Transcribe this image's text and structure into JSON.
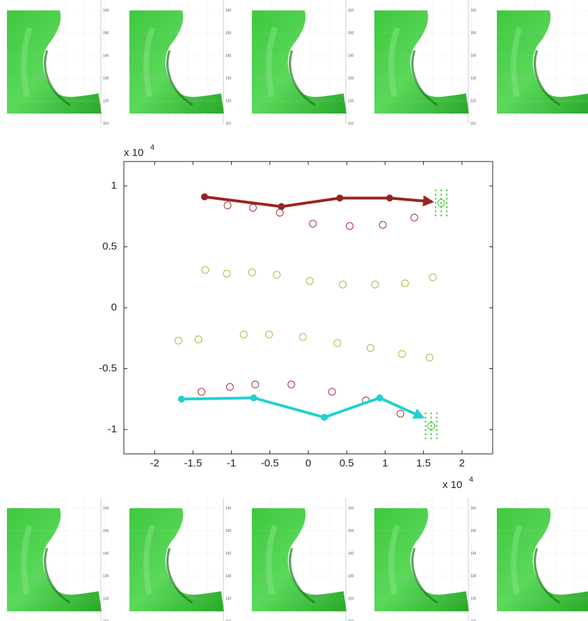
{
  "chart_data": {
    "type": "scatter",
    "xlim": [
      -2.4,
      2.4
    ],
    "ylim": [
      -1.2,
      1.2
    ],
    "xticks": [
      -2,
      -1.5,
      -1,
      -0.5,
      0,
      0.5,
      1,
      1.5,
      2
    ],
    "yticks": [
      -1,
      -0.5,
      0,
      0.5,
      1
    ],
    "x_exponent": {
      "base": "x 10",
      "power": "4"
    },
    "y_exponent": {
      "base": "x 10",
      "power": "4"
    },
    "series": [
      {
        "color": "#a0303a",
        "marker": "open-circle",
        "x": [
          -1.05,
          -0.72,
          -0.37,
          0.06,
          0.54,
          0.97,
          1.38
        ],
        "values": [
          0.84,
          0.82,
          0.78,
          0.69,
          0.67,
          0.68,
          0.74
        ]
      },
      {
        "color": "#b8b040",
        "marker": "open-circle",
        "x": [
          -1.34,
          -1.06,
          -0.73,
          -0.41,
          0.02,
          0.45,
          0.87,
          1.26,
          1.62
        ],
        "values": [
          0.31,
          0.28,
          0.29,
          0.27,
          0.22,
          0.19,
          0.19,
          0.2,
          0.25
        ]
      },
      {
        "color": "#b8b040",
        "marker": "open-circle",
        "x": [
          -1.69,
          -1.43,
          -0.84,
          -0.51,
          -0.07,
          0.38,
          0.81,
          1.22,
          1.58
        ],
        "values": [
          -0.27,
          -0.26,
          -0.22,
          -0.22,
          -0.24,
          -0.29,
          -0.33,
          -0.38,
          -0.41
        ]
      },
      {
        "color": "#a0303a",
        "marker": "open-circle",
        "x": [
          -1.39,
          -1.02,
          -0.69,
          -0.22,
          0.31,
          0.75,
          1.2
        ],
        "values": [
          -0.69,
          -0.65,
          -0.63,
          -0.63,
          -0.69,
          -0.76,
          -0.87
        ]
      },
      {
        "color": "#9b2222",
        "marker": "arrow",
        "x": [
          -1.35,
          -0.35,
          0.41,
          1.06,
          1.61
        ],
        "values": [
          0.91,
          0.83,
          0.9,
          0.9,
          0.87
        ]
      },
      {
        "color": "#22d0d0",
        "marker": "arrow",
        "x": [
          -1.65,
          -0.71,
          0.21,
          0.93,
          1.49
        ],
        "values": [
          -0.75,
          -0.74,
          -0.9,
          -0.74,
          -0.9
        ]
      },
      {
        "color": "#33cc33",
        "marker": "target",
        "x": [
          1.73,
          1.6
        ],
        "values": [
          0.86,
          -0.97
        ]
      }
    ]
  },
  "thumbnail_ticks": [
    160,
    150,
    140,
    130,
    120,
    110
  ]
}
